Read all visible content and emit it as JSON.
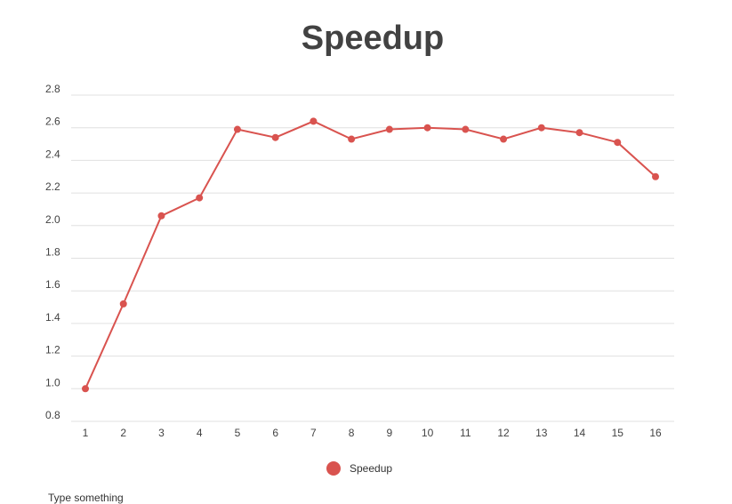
{
  "chart_data": {
    "type": "line",
    "title": "Speedup",
    "xlabel": "",
    "ylabel": "",
    "x": [
      1,
      2,
      3,
      4,
      5,
      6,
      7,
      8,
      9,
      10,
      11,
      12,
      13,
      14,
      15,
      16
    ],
    "series": [
      {
        "name": "Speedup",
        "color": "#d9534f",
        "values": [
          1.0,
          1.52,
          2.06,
          2.17,
          2.59,
          2.54,
          2.64,
          2.53,
          2.59,
          2.6,
          2.59,
          2.53,
          2.6,
          2.57,
          2.51,
          2.3
        ]
      }
    ],
    "ylim": [
      0.8,
      2.8
    ],
    "y_ticks": [
      "0.8",
      "1.0",
      "1.2",
      "1.4",
      "1.6",
      "1.8",
      "2.0",
      "2.2",
      "2.4",
      "2.6",
      "2.8"
    ],
    "grid": true,
    "legend": "bottom"
  },
  "footer": {
    "text": "Type something"
  }
}
